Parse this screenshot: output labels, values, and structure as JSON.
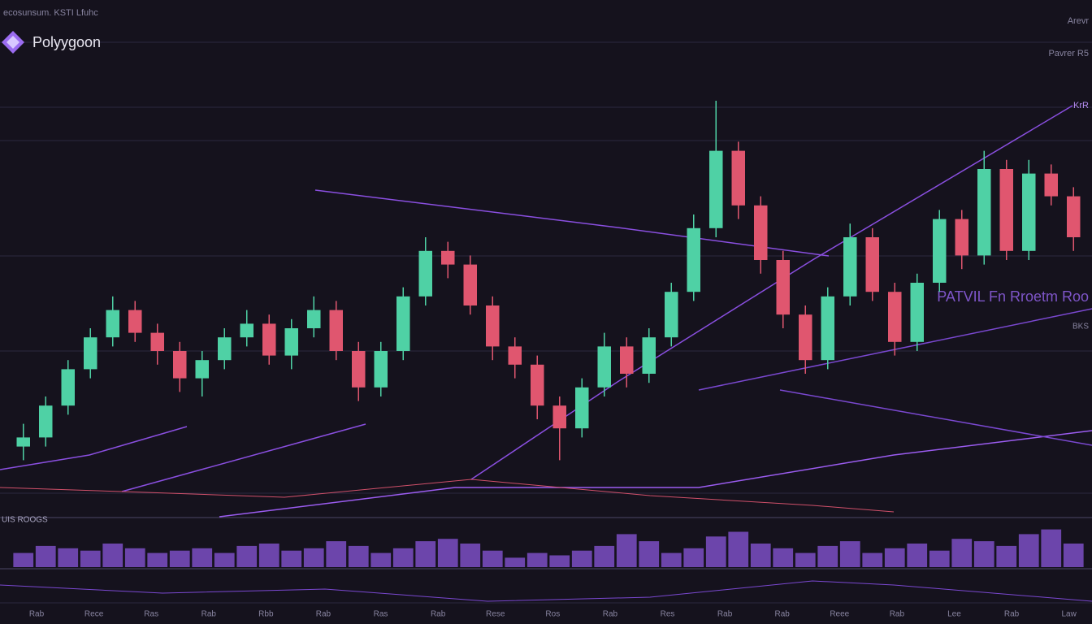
{
  "chart_data": {
    "type": "candlestick",
    "title": "Polyygoon",
    "header_text": "ecosunsum. KSTI Lfuhc",
    "top_right_labels": [
      "Arevr",
      "Pavrer R5",
      "KrR"
    ],
    "annotation": "PATVIL Fn Rroetm Roo",
    "side_label": "BKS",
    "indicator_label": "UIS ROOGS",
    "x_labels": [
      "Rab",
      "Rece",
      "Ras",
      "Rab",
      "Rbb",
      "Rab",
      "Ras",
      "Rab",
      "Rese",
      "Ros",
      "Rab",
      "Res",
      "Rab",
      "Rab",
      "Reee",
      "Rab",
      "Lee",
      "Rab",
      "Law"
    ],
    "open": [
      9,
      11,
      18,
      26,
      33,
      39,
      34,
      30,
      24,
      28,
      33,
      36,
      29,
      35,
      39,
      30,
      22,
      30,
      42,
      52,
      49,
      40,
      31,
      27,
      18,
      13,
      22,
      31,
      25,
      33,
      43,
      57,
      74,
      62,
      50,
      38,
      28,
      42,
      55,
      43,
      32,
      45,
      59,
      51,
      70,
      52,
      69,
      64
    ],
    "high": [
      14,
      20,
      28,
      35,
      42,
      41,
      36,
      32,
      30,
      35,
      39,
      38,
      37,
      42,
      41,
      32,
      32,
      44,
      55,
      54,
      51,
      42,
      33,
      29,
      20,
      24,
      34,
      33,
      35,
      45,
      60,
      85,
      76,
      64,
      52,
      40,
      44,
      58,
      57,
      45,
      47,
      61,
      61,
      74,
      72,
      72,
      71,
      66
    ],
    "low": [
      6,
      9,
      16,
      24,
      31,
      32,
      27,
      21,
      20,
      26,
      31,
      27,
      26,
      33,
      28,
      19,
      20,
      28,
      40,
      46,
      38,
      28,
      24,
      15,
      6,
      11,
      20,
      22,
      23,
      31,
      41,
      55,
      59,
      47,
      35,
      25,
      26,
      40,
      41,
      29,
      30,
      43,
      48,
      49,
      50,
      50,
      62,
      52
    ],
    "close": [
      11,
      18,
      26,
      33,
      39,
      34,
      30,
      24,
      28,
      33,
      36,
      29,
      35,
      39,
      30,
      22,
      30,
      42,
      52,
      49,
      40,
      31,
      27,
      18,
      13,
      22,
      31,
      25,
      33,
      43,
      57,
      74,
      62,
      50,
      38,
      28,
      42,
      55,
      43,
      32,
      45,
      59,
      51,
      70,
      52,
      69,
      64,
      55
    ],
    "up_color": "#4fd1a5",
    "down_color": "#e0566f",
    "ylim": [
      0,
      100
    ],
    "volume": [
      30,
      45,
      40,
      35,
      50,
      40,
      30,
      35,
      40,
      30,
      45,
      50,
      35,
      40,
      55,
      45,
      30,
      40,
      55,
      60,
      50,
      35,
      20,
      30,
      25,
      35,
      45,
      70,
      55,
      30,
      40,
      65,
      75,
      50,
      40,
      30,
      45,
      55,
      30,
      40,
      50,
      35,
      60,
      55,
      45,
      70,
      80,
      50
    ],
    "volume_color": "#7b4fc4",
    "volume_ylim": [
      0,
      100
    ]
  }
}
